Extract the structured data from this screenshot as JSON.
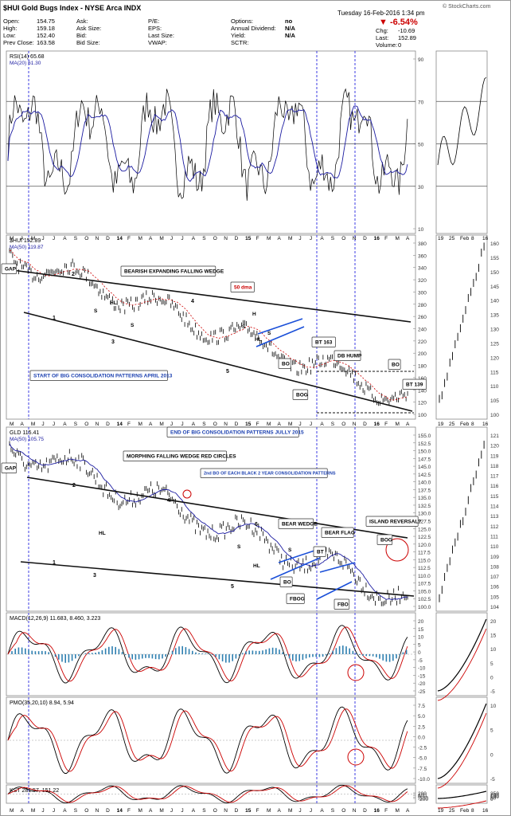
{
  "header": {
    "title": "$HUI Gold Bugs Index - NYSE Arca INDX",
    "datetime": "Tuesday 16-Feb-2016 1:34 pm",
    "brand": "© StockCharts.com",
    "pct_change": "▼ -6.54%",
    "quote_col1": [
      [
        "Open:",
        "154.75"
      ],
      [
        "High:",
        "159.18"
      ],
      [
        "Low:",
        "152.40"
      ],
      [
        "Prev Close:",
        "163.58"
      ]
    ],
    "quote_col2": [
      [
        "Ask:",
        ""
      ],
      [
        "Ask Size:",
        ""
      ],
      [
        "Bid:",
        ""
      ],
      [
        "Bid Size:",
        ""
      ]
    ],
    "quote_col3": [
      [
        "P/E:",
        ""
      ],
      [
        "EPS:",
        ""
      ],
      [
        "Last Size:",
        ""
      ],
      [
        "VWAP:",
        ""
      ]
    ],
    "quote_col4": [
      [
        "Options:",
        "no"
      ],
      [
        "Annual Dividend:",
        "N/A"
      ],
      [
        "Yield:",
        "N/A"
      ],
      [
        "SCTR:",
        ""
      ]
    ],
    "quote_col5": [
      [
        "Chg:",
        "-10.69"
      ],
      [
        "Last:",
        "152.89"
      ],
      [
        "Volume:",
        "0"
      ]
    ]
  },
  "x_axis": {
    "labels": [
      "M",
      "A",
      "M",
      "J",
      "J",
      "A",
      "S",
      "O",
      "N",
      "D",
      "14",
      "F",
      "M",
      "A",
      "M",
      "J",
      "J",
      "A",
      "S",
      "O",
      "N",
      "D",
      "15",
      "F",
      "M",
      "A",
      "M",
      "J",
      "J",
      "A",
      "S",
      "O",
      "N",
      "D",
      "16",
      "F",
      "M",
      "A"
    ],
    "inset_labels": [
      "19",
      "25",
      "Feb",
      "8",
      "16"
    ]
  },
  "colors": {
    "price": "#000000",
    "ma": "#1a1aa0",
    "dma50": "#cc0000",
    "blue_line": "#1a4fd8",
    "accent_red": "#cc0000",
    "macd_hist": "#2e7fb0",
    "positive_fill": "#2e6b2e",
    "negative_fill": "#6b1f1f"
  },
  "panels": {
    "rsi": {
      "legend": "RSI(14) 65.68",
      "legend2": "MA(20) 61.30",
      "ticks": [
        "90",
        "70",
        "50",
        "30",
        "10"
      ],
      "fill_levels": "70 / 30"
    },
    "hui": {
      "legend": "$HUI 152.89",
      "legend2": "MA(50) 119.87",
      "scale": "LOG SCALE",
      "author": "Rambus",
      "ticks": [
        "380",
        "360",
        "340",
        "320",
        "300",
        "280",
        "260",
        "240",
        "220",
        "200",
        "180",
        "160",
        "140",
        "120",
        "100"
      ],
      "right_ticks": [
        "160",
        "155",
        "150",
        "145",
        "140",
        "135",
        "130",
        "125",
        "120",
        "115",
        "110",
        "105",
        "100"
      ]
    },
    "gld": {
      "legend": "GLD 115.41",
      "legend2": "MA(50) 105.75",
      "ticks": [
        "155.0",
        "152.5",
        "150.0",
        "147.5",
        "145.0",
        "142.5",
        "140.0",
        "137.5",
        "135.0",
        "132.5",
        "130.0",
        "127.5",
        "125.0",
        "122.5",
        "120.0",
        "117.5",
        "115.0",
        "112.5",
        "110.0",
        "107.5",
        "105.0",
        "102.5",
        "100.0"
      ],
      "right_ticks": [
        "121",
        "120",
        "119",
        "118",
        "117",
        "116",
        "115",
        "114",
        "113",
        "112",
        "111",
        "110",
        "109",
        "108",
        "107",
        "106",
        "105",
        "104"
      ]
    },
    "macd": {
      "legend": "MACD(12,26,9) 11.683, 8.460, 3.223",
      "ticks": [
        "20",
        "15",
        "10",
        "5",
        "0",
        "-5",
        "-10",
        "-15",
        "-20",
        "-25"
      ],
      "right_ticks": [
        "20",
        "15",
        "10",
        "5",
        "0",
        "-5"
      ]
    },
    "pmo": {
      "legend": "PMO(35,20,10) 8.94, 5.94",
      "ticks": [
        "7.5",
        "5.0",
        "2.5",
        "0.0",
        "-2.5",
        "-5.0",
        "-7.5",
        "-10.0"
      ],
      "right_ticks": [
        "10",
        "5",
        "0",
        "-5"
      ]
    },
    "kst": {
      "legend": "KST 281.57, 151.22",
      "ticks": [
        "200",
        "100",
        "0",
        "-100",
        "-200"
      ],
      "right_ticks": [
        "250",
        "200",
        "150",
        "100",
        "50",
        "0"
      ]
    }
  },
  "annotations": {
    "gap": "GAP",
    "hui_title": "BEARISH EXPANDING FALLING WEDGE",
    "dma50": "50 dma",
    "start_box": "START OF BIG CONSOLIDATION PATTERNS APRIL 2013",
    "end_box": "END OF BIG CONSOLIDATION PATTERNS JULLY 2015",
    "bt163": "BT 163",
    "db_hump": "DB HUMP",
    "bo": "BO",
    "bt139": "BT 139",
    "bog": "BOG",
    "hl": "HL",
    "s": "S",
    "h": "H",
    "wave1": "1",
    "wave2": "2",
    "wave3": "3",
    "wave4": "4",
    "wave5": "5",
    "wave6": "6",
    "gld_title": "MORPHING FALLING WEDGE RED CIRCLES",
    "second_bo": "2nd BO OF EACH BLACK 2 YEAR CONSOLIDATION PATTERNS",
    "bear_wedge": "BEAR WEDGE",
    "bear_flag": "BEAR FLAG",
    "island": "ISLAND REVERSAL?",
    "bt": "BT",
    "fbog": "FBOG",
    "fbo": "FBO"
  },
  "chart_data": [
    {
      "type": "line",
      "title": "RSI(14)",
      "series": [
        {
          "name": "RSI(14)",
          "last": 65.68
        },
        {
          "name": "MA(20)",
          "last": 61.3
        }
      ],
      "ylim": [
        10,
        90
      ]
    },
    {
      "type": "line",
      "title": "$HUI",
      "scale": "log",
      "series": [
        {
          "name": "$HUI",
          "last": 152.89
        },
        {
          "name": "MA(50)",
          "last": 119.87
        }
      ],
      "ylim": [
        100,
        380
      ]
    },
    {
      "type": "line",
      "title": "GLD",
      "series": [
        {
          "name": "GLD",
          "last": 115.41
        },
        {
          "name": "MA(50)",
          "last": 105.75
        }
      ],
      "ylim": [
        100,
        155
      ]
    },
    {
      "type": "line",
      "title": "MACD(12,26,9)",
      "series": [
        {
          "name": "MACD",
          "last": 11.683
        },
        {
          "name": "Signal",
          "last": 8.46
        },
        {
          "name": "Histogram",
          "last": 3.223
        }
      ],
      "ylim": [
        -25,
        20
      ]
    },
    {
      "type": "line",
      "title": "PMO(35,20,10)",
      "series": [
        {
          "name": "PMO",
          "last": 8.94
        },
        {
          "name": "Signal",
          "last": 5.94
        }
      ],
      "ylim": [
        -10,
        8
      ]
    },
    {
      "type": "line",
      "title": "KST",
      "series": [
        {
          "name": "KST",
          "last": 281.57
        },
        {
          "name": "Signal",
          "last": 151.22
        }
      ],
      "ylim": [
        -200,
        250
      ]
    }
  ]
}
